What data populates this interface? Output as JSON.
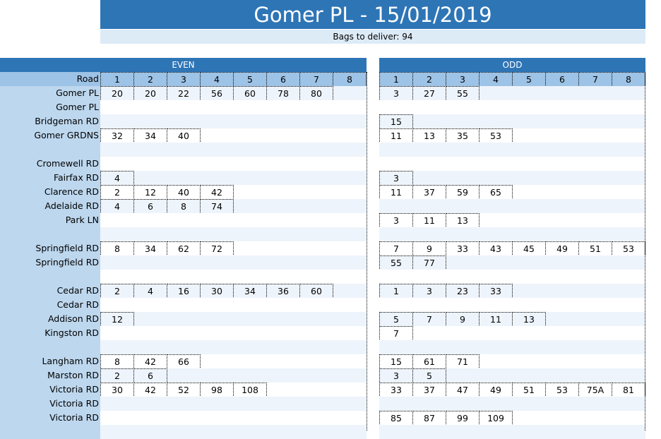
{
  "title": "Gomer PL - 15/01/2019",
  "subtitle": "Bags to deliver: 94",
  "even_label": "EVEN",
  "odd_label": "ODD",
  "road_label": "Road",
  "column_numbers": [
    "1",
    "2",
    "3",
    "4",
    "5",
    "6",
    "7",
    "8"
  ],
  "colors": {
    "title": "#2e75b6",
    "header_row": "#9dc3e6",
    "left_column": "#bdd7ee",
    "stripe": "#eef4fb"
  },
  "rows": [
    {
      "road": "Gomer PL",
      "even": [
        "20",
        "20",
        "22",
        "56",
        "60",
        "78",
        "80"
      ],
      "odd": [
        "3",
        "27",
        "55"
      ]
    },
    {
      "road": "Gomer PL",
      "even": [],
      "odd": []
    },
    {
      "road": "Bridgeman RD",
      "even": [],
      "odd": [
        "15"
      ]
    },
    {
      "road": "Gomer GRDNS",
      "even": [
        "32",
        "34",
        "40"
      ],
      "odd": [
        "11",
        "13",
        "35",
        "53"
      ]
    },
    {
      "road": "",
      "even": [],
      "odd": []
    },
    {
      "road": "Cromewell RD",
      "even": [],
      "odd": []
    },
    {
      "road": "Fairfax RD",
      "even": [
        "4"
      ],
      "odd": [
        "3"
      ]
    },
    {
      "road": "Clarence RD",
      "even": [
        "2",
        "12",
        "40",
        "42"
      ],
      "odd": [
        "11",
        "37",
        "59",
        "65"
      ]
    },
    {
      "road": "Adelaide RD",
      "even": [
        "4",
        "6",
        "8",
        "74"
      ],
      "odd": []
    },
    {
      "road": "Park LN",
      "even": [],
      "odd": [
        "3",
        "11",
        "13"
      ]
    },
    {
      "road": "",
      "even": [],
      "odd": []
    },
    {
      "road": "Springfield RD",
      "even": [
        "8",
        "34",
        "62",
        "72"
      ],
      "odd": [
        "7",
        "9",
        "33",
        "43",
        "45",
        "49",
        "51",
        "53"
      ]
    },
    {
      "road": "Springfield RD",
      "even": [],
      "odd": [
        "55",
        "77"
      ]
    },
    {
      "road": "",
      "even": [],
      "odd": []
    },
    {
      "road": "Cedar RD",
      "even": [
        "2",
        "4",
        "16",
        "30",
        "34",
        "36",
        "60"
      ],
      "odd": [
        "1",
        "3",
        "23",
        "33"
      ]
    },
    {
      "road": "Cedar RD",
      "even": [],
      "odd": []
    },
    {
      "road": "Addison RD",
      "even": [
        "12"
      ],
      "odd": [
        "5",
        "7",
        "9",
        "11",
        "13"
      ]
    },
    {
      "road": "Kingston RD",
      "even": [],
      "odd": [
        "7"
      ]
    },
    {
      "road": "",
      "even": [],
      "odd": []
    },
    {
      "road": "Langham RD",
      "even": [
        "8",
        "42",
        "66"
      ],
      "odd": [
        "15",
        "61",
        "71"
      ]
    },
    {
      "road": "Marston RD",
      "even": [
        "2",
        "6"
      ],
      "odd": [
        "3",
        "5"
      ]
    },
    {
      "road": "Victoria RD",
      "even": [
        "30",
        "42",
        "52",
        "98",
        "108"
      ],
      "odd": [
        "33",
        "37",
        "47",
        "49",
        "51",
        "53",
        "75A",
        "81"
      ]
    },
    {
      "road": "Victoria RD",
      "even": [],
      "odd": []
    },
    {
      "road": "Victoria RD",
      "even": [],
      "odd": [
        "85",
        "87",
        "99",
        "109"
      ]
    },
    {
      "road": "",
      "even": [],
      "odd": []
    }
  ]
}
